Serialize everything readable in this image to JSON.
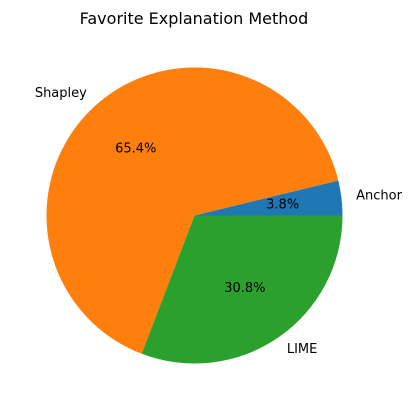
{
  "chart_data": {
    "type": "pie",
    "title": "Favorite Explanation Method",
    "slices": [
      {
        "label": "Anchor",
        "value": 3.8,
        "pct_label": "3.8%",
        "color": "#1f77b4"
      },
      {
        "label": "Shapley",
        "value": 65.4,
        "pct_label": "65.4%",
        "color": "#ff7f0e"
      },
      {
        "label": "LIME",
        "value": 30.8,
        "pct_label": "30.8%",
        "color": "#2ca02c"
      }
    ],
    "start_angle_deg": 0,
    "direction": "counterclockwise",
    "legend": "none"
  }
}
